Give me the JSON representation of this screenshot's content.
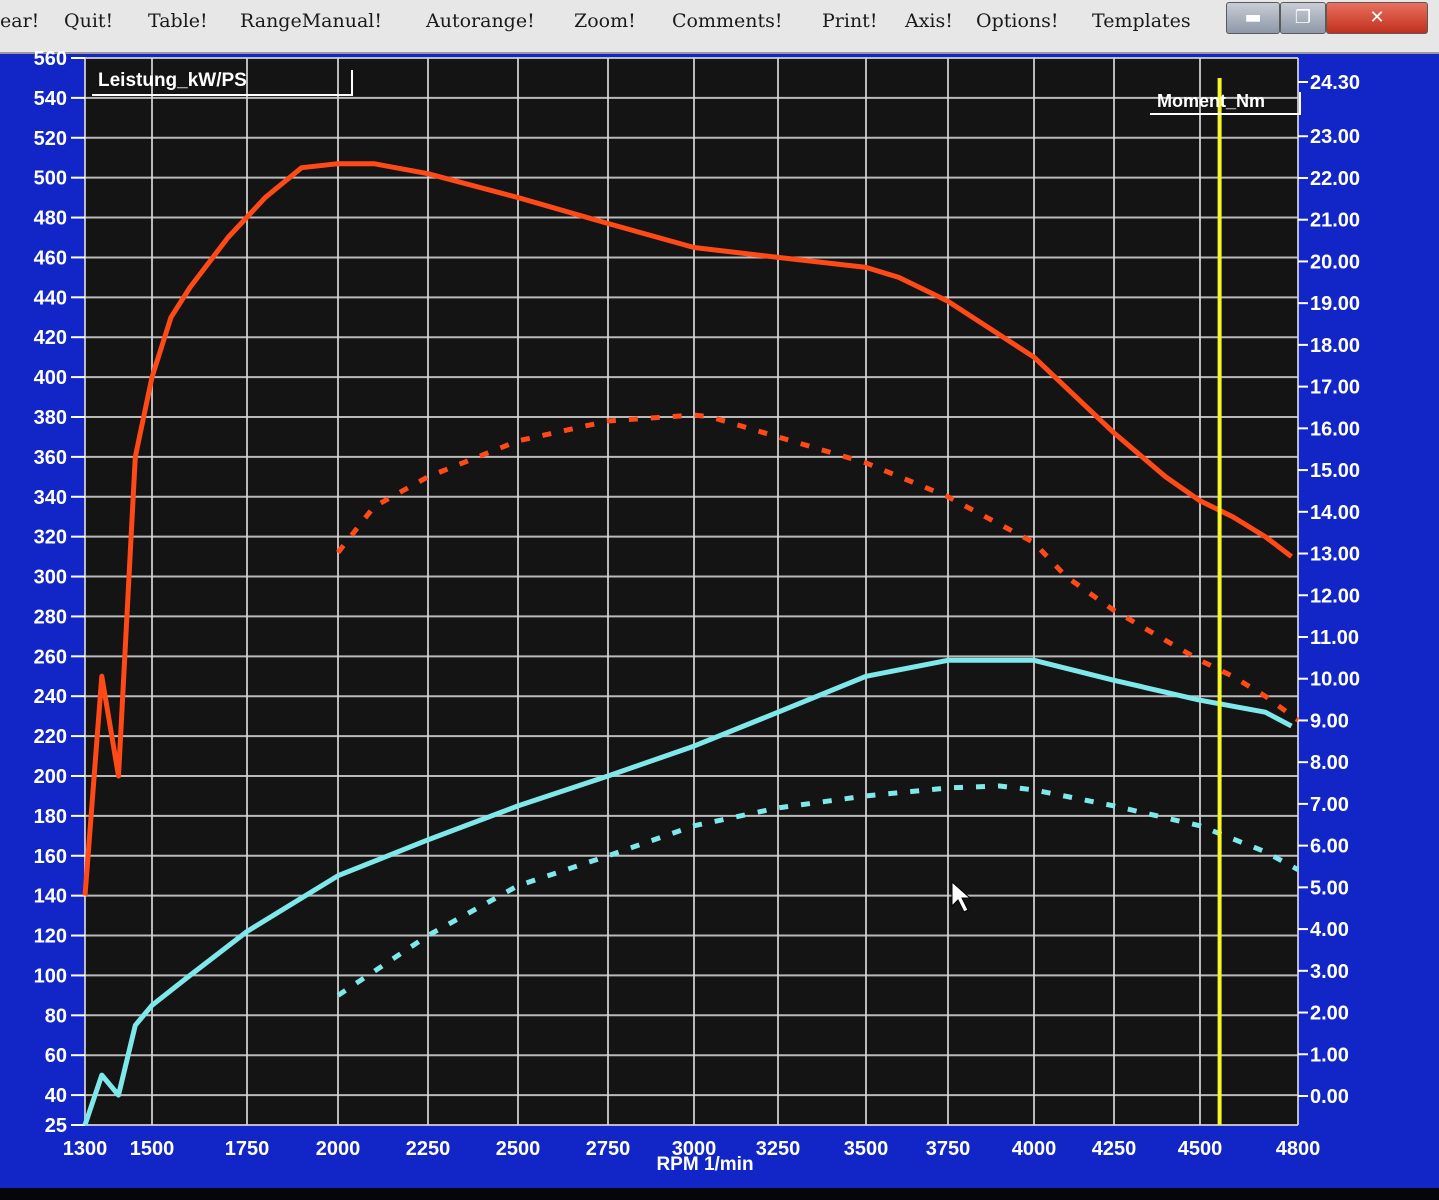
{
  "menu": {
    "items": [
      "ear!",
      "Quit!",
      "Table!",
      "RangeManual!",
      "Autorange!",
      "Zoom!",
      "Comments!",
      "Print!",
      "Axis!",
      "Options!",
      "Templates"
    ]
  },
  "window_buttons": {
    "minimize": "▬",
    "maximize": "❐",
    "close": "✕"
  },
  "colors": {
    "chart_frame": "#1226c8",
    "plot_background": "#141414",
    "grid": "#d8d8d8",
    "power": "#ff4a17",
    "torque": "#7fe8ea",
    "marker_line": "#f5f52a"
  },
  "chart_data": {
    "type": "line",
    "xlabel": "RPM  1/min",
    "x_ticks": [
      1300,
      1500,
      1750,
      2000,
      2250,
      2500,
      2750,
      3000,
      3250,
      3500,
      3750,
      4000,
      4250,
      4500,
      4800
    ],
    "xlim": [
      1300,
      4800
    ],
    "y_left": {
      "label": "Leistung_kW/PS",
      "ylim": [
        25,
        560
      ],
      "ticks": [
        560,
        540,
        520,
        500,
        480,
        460,
        440,
        420,
        400,
        380,
        360,
        340,
        320,
        300,
        280,
        260,
        240,
        220,
        200,
        180,
        160,
        140,
        120,
        100,
        80,
        60,
        40,
        25
      ]
    },
    "y_right": {
      "label": "Moment_Nm",
      "ylim": [
        0.0,
        24.3
      ],
      "ticks": [
        "24.30",
        "23.00",
        "22.00",
        "21.00",
        "20.00",
        "19.00",
        "18.00",
        "17.00",
        "16.00",
        "15.00",
        "14.00",
        "13.00",
        "12.00",
        "11.00",
        "10.00",
        "9.00",
        "8.00",
        "7.00",
        "6.00",
        "5.00",
        "4.00",
        "3.00",
        "2.00",
        "1.00",
        "0.00"
      ]
    },
    "grid": true,
    "marker_rpm": 4560,
    "series": [
      {
        "style": "solid",
        "color": "#ff4a17",
        "x": [
          1300,
          1350,
          1400,
          1450,
          1500,
          1550,
          1600,
          1700,
          1800,
          1900,
          2000,
          2100,
          2250,
          2500,
          2750,
          3000,
          3250,
          3500,
          3600,
          3750,
          4000,
          4250,
          4400,
          4500,
          4600,
          4700,
          4780
        ],
        "y": [
          140,
          250,
          200,
          360,
          400,
          430,
          445,
          470,
          490,
          505,
          507,
          507,
          502,
          490,
          477,
          465,
          460,
          455,
          450,
          438,
          410,
          372,
          350,
          338,
          330,
          320,
          310
        ]
      },
      {
        "style": "dotted",
        "color": "#ff4a17",
        "x": [
          2000,
          2100,
          2250,
          2500,
          2750,
          3000,
          3050,
          3250,
          3500,
          3750,
          4000,
          4100,
          4250,
          4400,
          4500,
          4600,
          4700,
          4800
        ],
        "y": [
          312,
          335,
          350,
          368,
          378,
          381,
          380,
          370,
          357,
          340,
          317,
          300,
          283,
          268,
          258,
          250,
          240,
          228
        ]
      },
      {
        "style": "solid",
        "color": "#7fe8ea",
        "x": [
          1300,
          1350,
          1400,
          1450,
          1500,
          1600,
          1750,
          2000,
          2250,
          2500,
          2750,
          3000,
          3250,
          3500,
          3750,
          4000,
          4250,
          4500,
          4700,
          4780
        ],
        "y": [
          25,
          50,
          40,
          75,
          85,
          100,
          122,
          150,
          168,
          185,
          200,
          215,
          232,
          250,
          258,
          258,
          248,
          238,
          232,
          225
        ]
      },
      {
        "style": "dotted",
        "color": "#7fe8ea",
        "x": [
          2000,
          2250,
          2500,
          2750,
          3000,
          3250,
          3500,
          3750,
          3900,
          4000,
          4250,
          4500,
          4700,
          4800
        ],
        "y": [
          90,
          120,
          145,
          160,
          175,
          184,
          190,
          194,
          195,
          193,
          185,
          175,
          162,
          153
        ]
      }
    ]
  }
}
